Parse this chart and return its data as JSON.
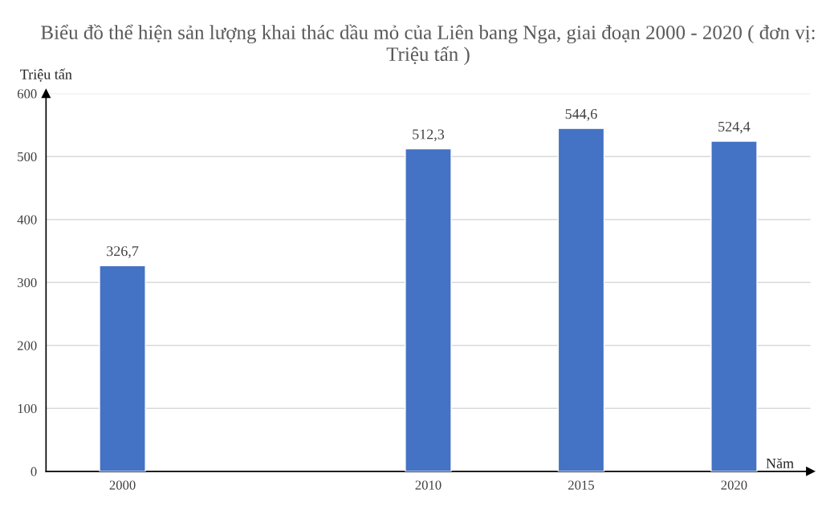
{
  "chart_data": {
    "type": "bar",
    "title": "Biểu đồ thể hiện sản lượng khai thác dầu mỏ của Liên bang Nga, giai đoạn 2000 - 2020 ( đơn vị: Triệu tấn )",
    "xlabel": "Năm",
    "ylabel": "Triệu tấn",
    "x": [
      2000,
      2010,
      2015,
      2020
    ],
    "values": [
      326.7,
      512.3,
      544.6,
      524.4
    ],
    "value_labels": [
      "326,7",
      "512,3",
      "544,6",
      "524,4"
    ],
    "color": "#4472c4",
    "xlim": [
      1997.5,
      2022.5
    ],
    "xticks": [
      2000,
      2010,
      2015,
      2020
    ],
    "ylim": [
      0,
      600
    ],
    "yticks": [
      0,
      100,
      200,
      300,
      400,
      500,
      600
    ],
    "grid": "y",
    "legend": false
  }
}
